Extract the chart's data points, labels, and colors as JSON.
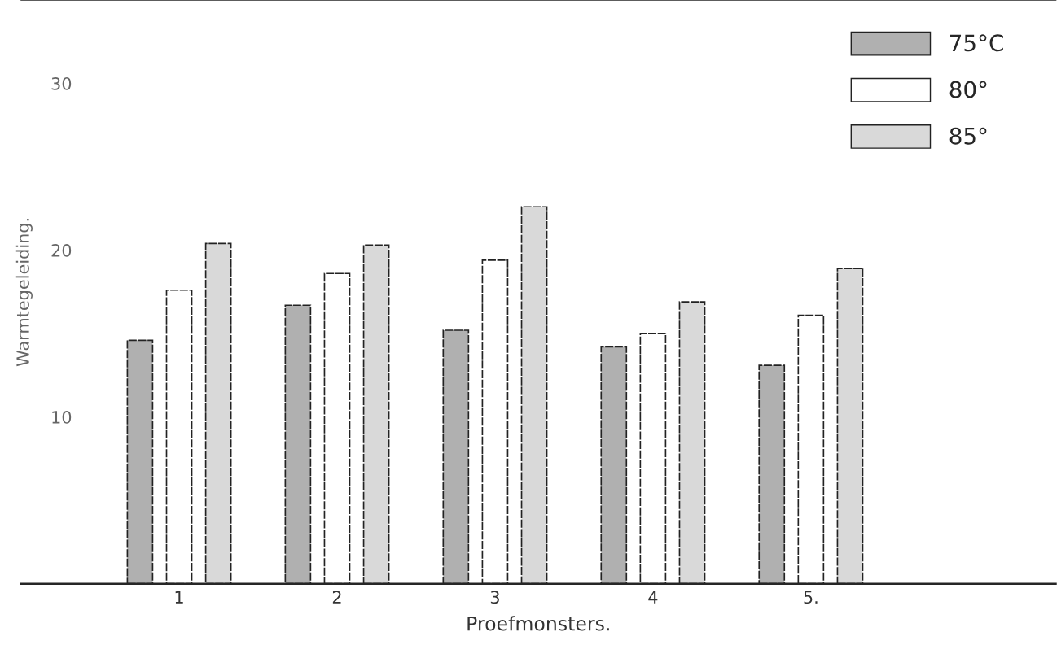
{
  "chart_data": {
    "type": "bar",
    "xlabel": "Proefmonsters.",
    "ylabel": "Warmtegeleiding.",
    "categories": [
      "1",
      "2",
      "3",
      "4",
      "5."
    ],
    "series": [
      {
        "name": "75°C",
        "color": "#b0b0b0",
        "values": [
          14.6,
          16.7,
          15.2,
          14.2,
          13.1
        ]
      },
      {
        "name": "80°",
        "color": "#ffffff",
        "values": [
          17.6,
          18.6,
          19.4,
          15.0,
          16.1
        ]
      },
      {
        "name": "85°",
        "color": "#d9d9d9",
        "values": [
          20.4,
          20.3,
          22.6,
          16.9,
          18.9
        ]
      }
    ],
    "ylim": [
      0,
      35
    ],
    "yticks": [
      10,
      20,
      30
    ],
    "legend": "top right",
    "grid": false
  }
}
